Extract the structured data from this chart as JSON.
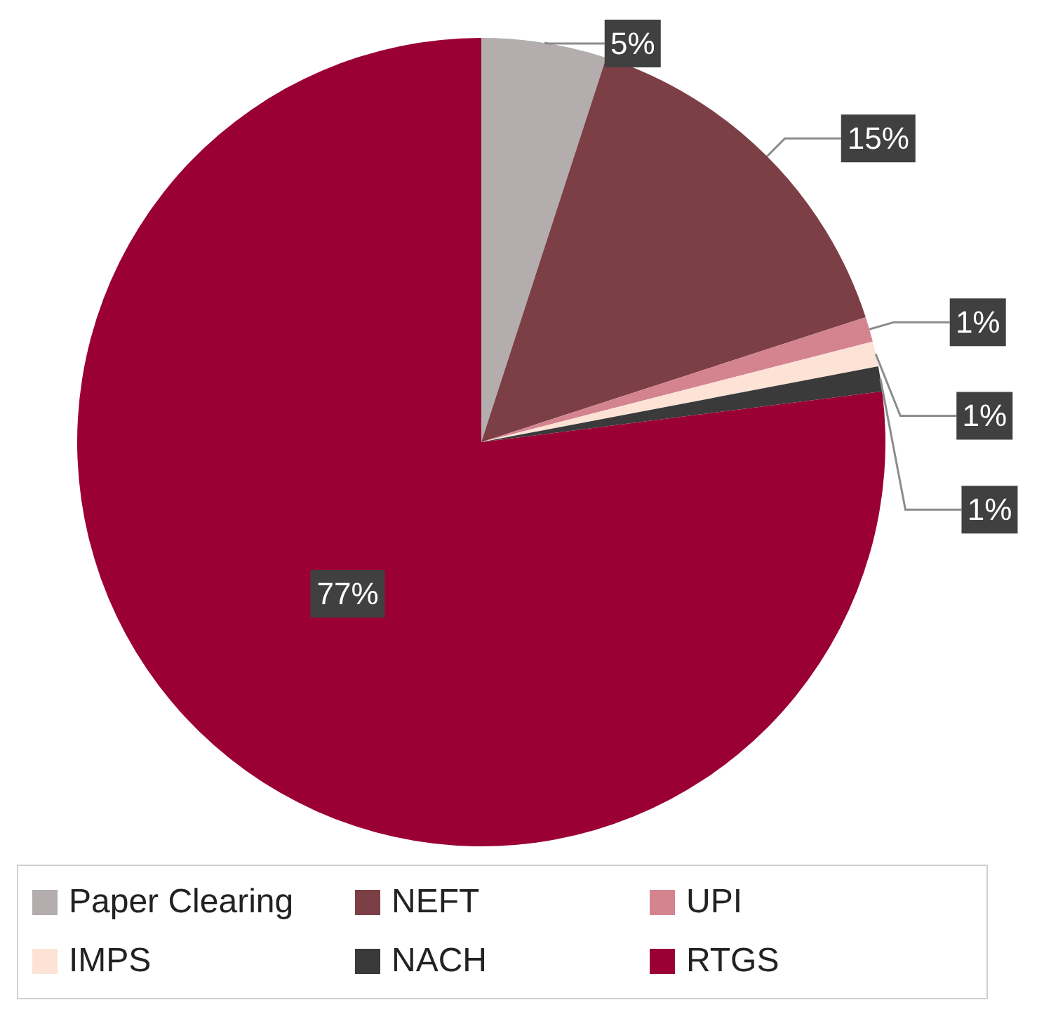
{
  "chart_data": {
    "type": "pie",
    "categories": [
      "Paper Clearing",
      "NEFT",
      "UPI",
      "IMPS",
      "NACH",
      "RTGS"
    ],
    "values": [
      5,
      15,
      1,
      1,
      1,
      77
    ],
    "colors": [
      "#b3adad",
      "#7b3f45",
      "#d4848f",
      "#fde3d6",
      "#3a3a3a",
      "#9b0034"
    ],
    "value_labels": [
      "5%",
      "15%",
      "1%",
      "1%",
      "1%",
      "77%"
    ],
    "legend": "bottom"
  }
}
